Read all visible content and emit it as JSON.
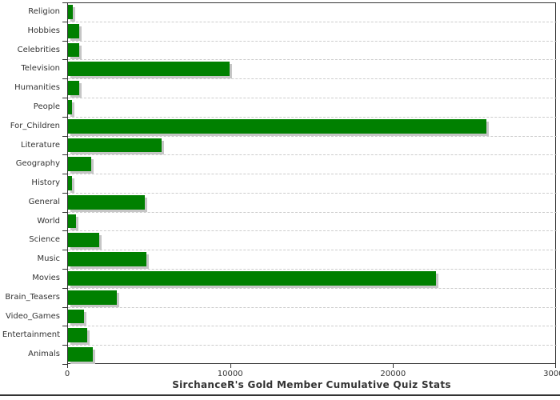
{
  "chart_data": {
    "type": "bar",
    "orientation": "horizontal",
    "title": "SirchanceR's Gold Member Cumulative Quiz Stats",
    "categories": [
      "Religion",
      "Hobbies",
      "Celebrities",
      "Television",
      "Humanities",
      "People",
      "For_Children",
      "Literature",
      "Geography",
      "History",
      "General",
      "World",
      "Science",
      "Music",
      "Movies",
      "Brain_Teasers",
      "Video_Games",
      "Entertainment",
      "Animals"
    ],
    "values": [
      300,
      700,
      700,
      9900,
      700,
      250,
      25700,
      5750,
      1400,
      250,
      4700,
      500,
      1900,
      4800,
      22600,
      3000,
      1000,
      1200,
      1500
    ],
    "xlim": [
      0,
      30000
    ],
    "x_ticks": [
      0,
      10000,
      20000,
      30000
    ],
    "x_tick_labels": [
      "0",
      "10000",
      "20000",
      "30000"
    ],
    "xlabel": "",
    "ylabel": "",
    "grid": "horizontal dashed row separators",
    "legend": "none",
    "colors": {
      "bar_fill": "#008000",
      "bar_shadow": "#c6c6c6",
      "grid_line": "#cccccc",
      "axis_line": "#333333",
      "text": "#333333",
      "background": "#ffffff"
    }
  }
}
